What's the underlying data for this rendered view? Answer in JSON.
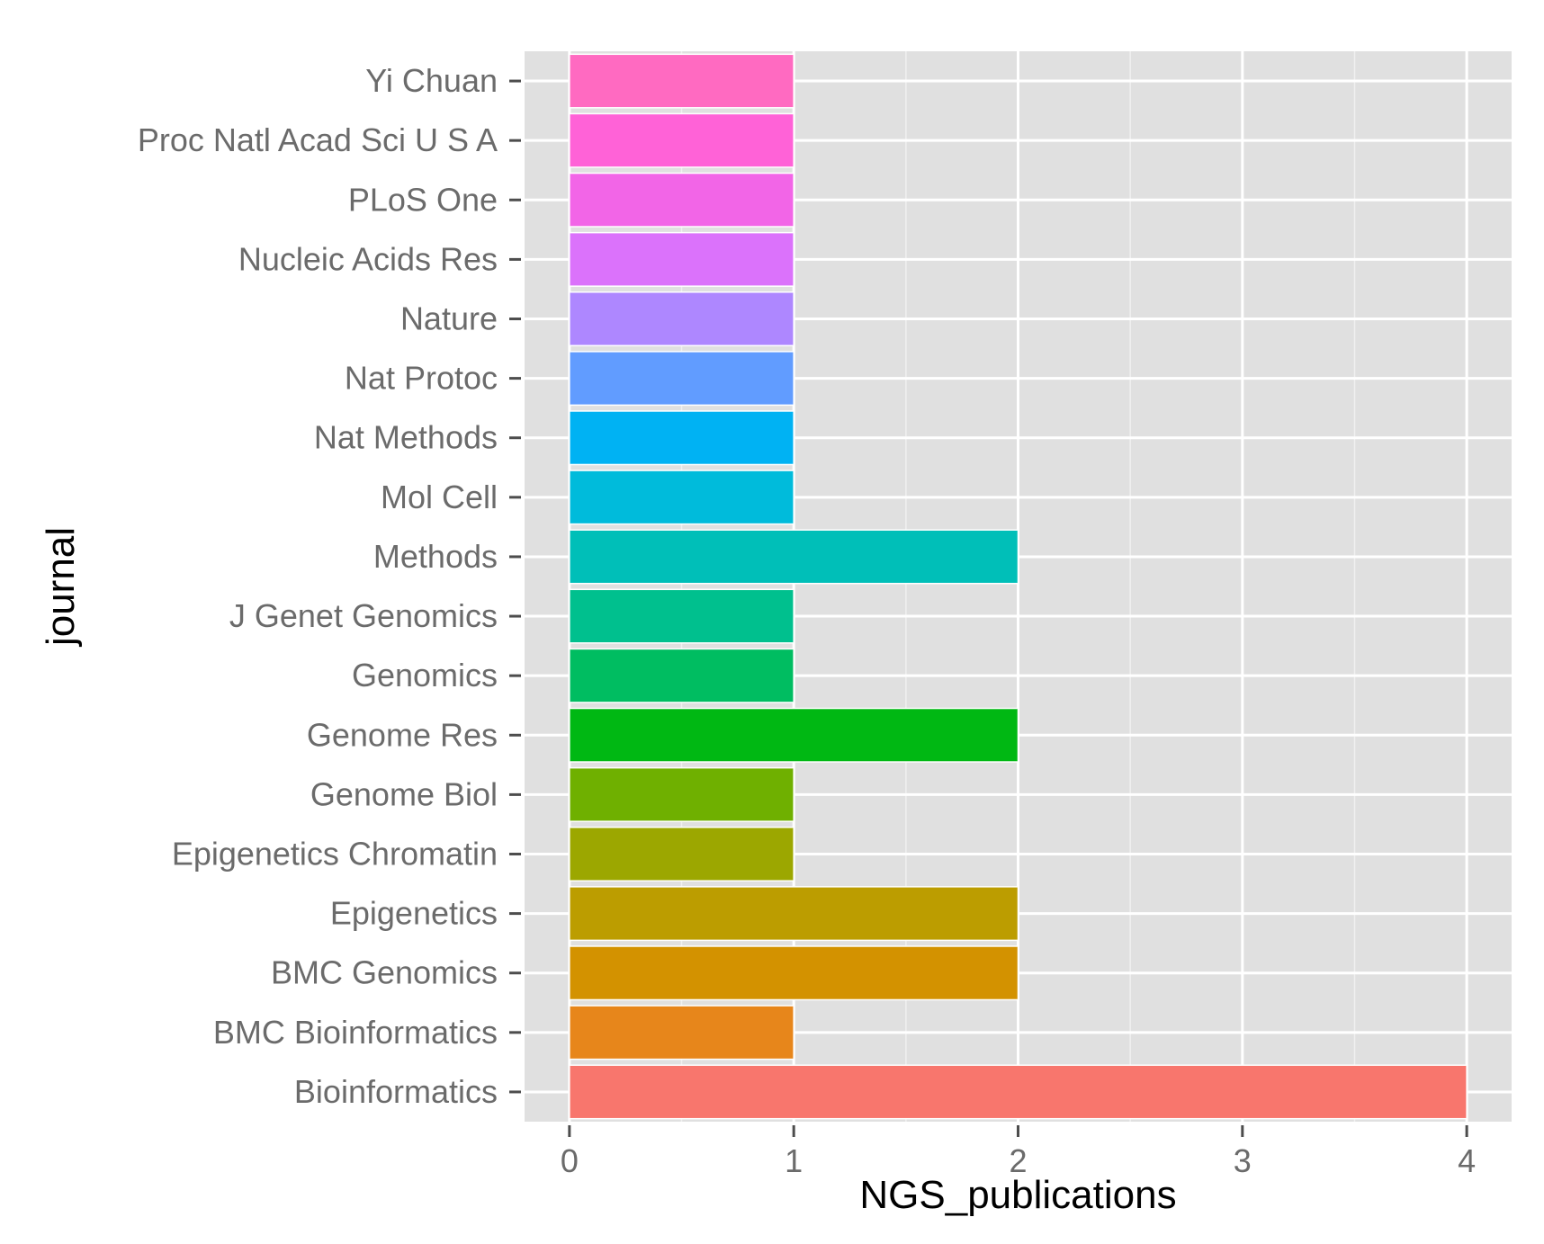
{
  "chart_data": {
    "type": "bar",
    "orientation": "horizontal",
    "xlabel": "NGS_publications",
    "ylabel": "journal",
    "xlim": [
      -0.2,
      4.2
    ],
    "x_ticks": [
      0,
      1,
      2,
      3,
      4
    ],
    "grid": true,
    "legend": "none",
    "categories": [
      "Bioinformatics",
      "BMC Bioinformatics",
      "BMC Genomics",
      "Epigenetics",
      "Epigenetics Chromatin",
      "Genome Biol",
      "Genome Res",
      "Genomics",
      "J Genet Genomics",
      "Methods",
      "Mol Cell",
      "Nat Methods",
      "Nat Protoc",
      "Nature",
      "Nucleic Acids Res",
      "PLoS One",
      "Proc Natl Acad Sci U S A",
      "Yi Chuan"
    ],
    "values": [
      4,
      1,
      2,
      2,
      1,
      1,
      2,
      1,
      1,
      2,
      1,
      1,
      1,
      1,
      1,
      1,
      1,
      1
    ],
    "colors": [
      "#F8766D",
      "#E7861B",
      "#D39200",
      "#BC9D00",
      "#9CA700",
      "#6FB000",
      "#00B813",
      "#00BD61",
      "#00C08E",
      "#00BFB8",
      "#00BBDB",
      "#00B2F3",
      "#619CFF",
      "#AE87FF",
      "#DB72FB",
      "#F265E7",
      "#FF62D7",
      "#FF6AC1"
    ]
  }
}
